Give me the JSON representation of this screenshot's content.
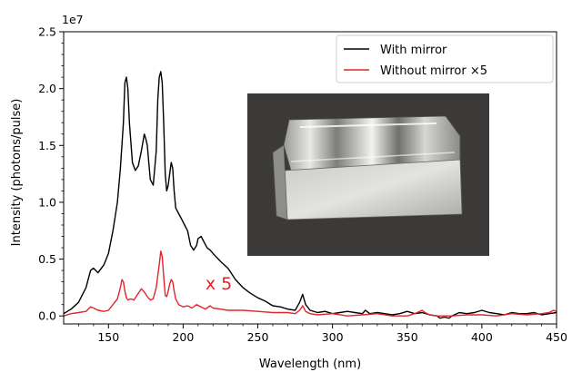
{
  "chart_data": {
    "type": "line",
    "title": "",
    "xlabel": "Wavelength (nm)",
    "ylabel": "Intensity (photons/pulse)",
    "y_scale_label": "1e7",
    "xlim": [
      120,
      450
    ],
    "ylim": [
      -0.07,
      2.5
    ],
    "x_ticks": [
      150,
      200,
      250,
      300,
      350,
      400,
      450
    ],
    "y_ticks": [
      0.0,
      0.5,
      1.0,
      1.5,
      2.0,
      2.5
    ],
    "x_tick_labels": [
      "150",
      "200",
      "250",
      "300",
      "350",
      "400",
      "450"
    ],
    "y_tick_labels": [
      "0.0",
      "0.5",
      "1.0",
      "1.5",
      "2.0",
      "2.5"
    ],
    "grid": false,
    "legend_position": "top-right",
    "series": [
      {
        "name": "With mirror",
        "color": "#000000",
        "x": [
          120,
          125,
          130,
          135,
          138,
          140,
          143,
          147,
          150,
          153,
          156,
          158,
          160,
          161,
          162,
          163,
          164,
          166,
          168,
          170,
          172,
          174,
          175,
          176,
          177,
          178,
          180,
          182,
          183,
          184,
          185,
          186,
          187,
          188,
          189,
          190,
          191,
          192,
          193,
          194,
          195,
          197,
          199,
          201,
          203,
          205,
          207,
          209,
          210,
          212,
          214,
          216,
          218,
          220,
          225,
          230,
          235,
          240,
          245,
          250,
          255,
          260,
          265,
          270,
          275,
          278,
          280,
          282,
          285,
          290,
          295,
          300,
          305,
          310,
          315,
          320,
          322,
          325,
          330,
          335,
          340,
          345,
          350,
          355,
          360,
          365,
          370,
          372,
          375,
          378,
          380,
          385,
          390,
          395,
          400,
          405,
          410,
          415,
          420,
          425,
          430,
          435,
          440,
          445,
          450
        ],
        "y": [
          0.02,
          0.06,
          0.12,
          0.25,
          0.4,
          0.42,
          0.38,
          0.45,
          0.55,
          0.75,
          1.0,
          1.3,
          1.7,
          2.05,
          2.1,
          2.0,
          1.7,
          1.35,
          1.28,
          1.32,
          1.45,
          1.6,
          1.56,
          1.5,
          1.35,
          1.2,
          1.15,
          1.45,
          1.9,
          2.1,
          2.15,
          2.05,
          1.7,
          1.25,
          1.1,
          1.15,
          1.25,
          1.35,
          1.3,
          1.1,
          0.95,
          0.9,
          0.85,
          0.8,
          0.75,
          0.62,
          0.58,
          0.62,
          0.68,
          0.7,
          0.65,
          0.6,
          0.58,
          0.55,
          0.48,
          0.42,
          0.32,
          0.25,
          0.2,
          0.16,
          0.13,
          0.09,
          0.08,
          0.06,
          0.05,
          0.12,
          0.19,
          0.1,
          0.05,
          0.03,
          0.04,
          0.02,
          0.03,
          0.04,
          0.03,
          0.02,
          0.05,
          0.02,
          0.03,
          0.02,
          0.01,
          0.02,
          0.04,
          0.02,
          0.03,
          0.01,
          0.0,
          -0.02,
          -0.01,
          -0.02,
          0.0,
          0.03,
          0.02,
          0.03,
          0.05,
          0.03,
          0.02,
          0.01,
          0.03,
          0.02,
          0.02,
          0.03,
          0.01,
          0.02,
          0.03
        ]
      },
      {
        "name": "Without mirror ×5",
        "color": "#e0262d",
        "x": [
          120,
          125,
          130,
          135,
          138,
          140,
          143,
          147,
          150,
          153,
          156,
          158,
          159,
          160,
          161,
          162,
          163,
          165,
          167,
          170,
          172,
          174,
          176,
          178,
          180,
          182,
          184,
          185,
          186,
          187,
          188,
          189,
          190,
          191,
          192,
          193,
          194,
          195,
          197,
          200,
          203,
          206,
          209,
          212,
          215,
          218,
          220,
          225,
          230,
          240,
          250,
          260,
          270,
          275,
          278,
          280,
          282,
          285,
          290,
          300,
          310,
          320,
          330,
          340,
          350,
          355,
          360,
          362,
          365,
          370,
          380,
          390,
          400,
          410,
          420,
          430,
          440,
          445,
          448,
          450
        ],
        "y": [
          0.0,
          0.02,
          0.03,
          0.04,
          0.08,
          0.07,
          0.05,
          0.04,
          0.05,
          0.1,
          0.15,
          0.25,
          0.32,
          0.3,
          0.22,
          0.16,
          0.14,
          0.15,
          0.14,
          0.2,
          0.24,
          0.21,
          0.17,
          0.14,
          0.15,
          0.25,
          0.45,
          0.57,
          0.52,
          0.35,
          0.18,
          0.17,
          0.22,
          0.28,
          0.32,
          0.3,
          0.22,
          0.15,
          0.1,
          0.08,
          0.09,
          0.07,
          0.1,
          0.08,
          0.06,
          0.09,
          0.07,
          0.06,
          0.05,
          0.05,
          0.04,
          0.03,
          0.03,
          0.02,
          0.05,
          0.09,
          0.04,
          0.02,
          0.01,
          0.02,
          0.0,
          0.01,
          0.02,
          0.0,
          0.0,
          0.02,
          0.05,
          0.03,
          0.01,
          0.0,
          0.0,
          0.01,
          0.01,
          0.0,
          0.02,
          0.01,
          0.02,
          0.03,
          0.05,
          0.04
        ]
      }
    ],
    "annotations": [
      {
        "text": "x 5",
        "x": 210,
        "y": 0.13,
        "color": "#e0262d"
      }
    ],
    "inset": {
      "description_name": "mirror-photo",
      "background": "#3b3a39"
    }
  }
}
